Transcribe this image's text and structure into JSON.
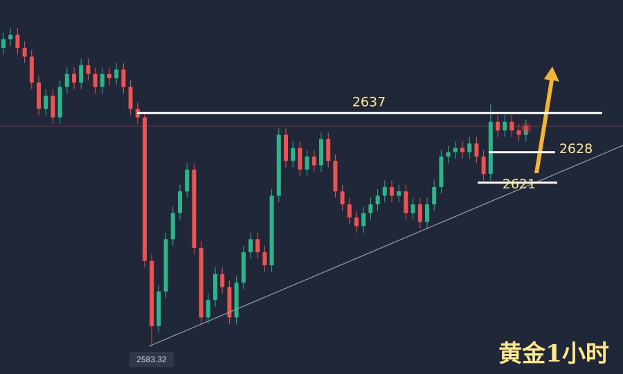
{
  "chart_data": {
    "type": "candlestick",
    "title": "黄金1小时",
    "up_color": "#2bb58a",
    "down_color": "#ef5350",
    "ylim": [
      2577,
      2663
    ],
    "levels": [
      2637,
      2628,
      2621
    ],
    "open": [
      2652,
      2654,
      2655,
      2652,
      2650,
      2644,
      2638,
      2641,
      2636,
      2643,
      2646,
      2644,
      2648,
      2646,
      2643,
      2646,
      2645,
      2647,
      2643,
      2638,
      2636,
      2603,
      2588,
      2596,
      2608,
      2614,
      2619,
      2624,
      2606,
      2590,
      2594,
      2600,
      2597,
      2590,
      2598,
      2605,
      2608,
      2605,
      2602,
      2618,
      2632,
      2626,
      2629,
      2624,
      2627,
      2625,
      2631,
      2626,
      2619,
      2616,
      2613,
      2611,
      2614,
      2616,
      2618,
      2620,
      2618,
      2619,
      2614,
      2616,
      2612,
      2616,
      2620,
      2627,
      2628,
      2629,
      2628,
      2630,
      2627,
      2623,
      2635,
      2633,
      2635,
      2633,
      2632
    ],
    "high": [
      2655.5,
      2656.5,
      2656.5,
      2653.5,
      2651.5,
      2645.5,
      2642.5,
      2642.5,
      2644.5,
      2647.5,
      2647.5,
      2649.5,
      2649.5,
      2647.5,
      2647.5,
      2647.5,
      2648.5,
      2648.5,
      2644.5,
      2639.5,
      2637,
      2604.5,
      2597.5,
      2609.5,
      2615.5,
      2620.5,
      2625.5,
      2625.5,
      2607.5,
      2595.5,
      2601.5,
      2601.5,
      2598.5,
      2599.5,
      2606.5,
      2609.5,
      2609.5,
      2606.5,
      2619.5,
      2633.5,
      2633.5,
      2630.5,
      2630.5,
      2628.5,
      2628.5,
      2632.5,
      2632.5,
      2627.5,
      2620.5,
      2617.5,
      2614.5,
      2615.5,
      2617.5,
      2619.5,
      2621.5,
      2621.5,
      2620.5,
      2620.5,
      2617.5,
      2617.5,
      2617.5,
      2621.5,
      2628.5,
      2629.5,
      2630.5,
      2630.5,
      2631.5,
      2631.5,
      2628.5,
      2639,
      2636.5,
      2636.5,
      2636.5,
      2634.5,
      2635.5
    ],
    "low": [
      2650.5,
      2652.5,
      2650.5,
      2648.5,
      2642.5,
      2636.5,
      2636.5,
      2634.5,
      2634.5,
      2641.5,
      2642.5,
      2642.5,
      2644.5,
      2641.5,
      2641.5,
      2643.5,
      2643.5,
      2641.5,
      2636.5,
      2634.5,
      2601.5,
      2583.32,
      2586.5,
      2594.5,
      2606.5,
      2612.5,
      2617.5,
      2604.5,
      2588.5,
      2588.5,
      2592.5,
      2595.5,
      2588.5,
      2588.5,
      2596.5,
      2603.5,
      2603.5,
      2600.5,
      2600.5,
      2616.5,
      2624.5,
      2624.5,
      2622.5,
      2622.5,
      2623.5,
      2623.5,
      2624.5,
      2617.5,
      2614.5,
      2611.5,
      2609.5,
      2609.5,
      2612.5,
      2614.5,
      2616.5,
      2616.5,
      2616.5,
      2612.5,
      2612.5,
      2610.5,
      2610.5,
      2614.5,
      2618.5,
      2625.5,
      2626.5,
      2626.5,
      2626.5,
      2625.5,
      2621.5,
      2621.5,
      2631.5,
      2631.5,
      2631.5,
      2630.5,
      2630.5
    ],
    "close": [
      2654,
      2655,
      2652,
      2650,
      2644,
      2638,
      2641,
      2636,
      2643,
      2646,
      2644,
      2648,
      2646,
      2643,
      2646,
      2645,
      2647,
      2643,
      2638,
      2636,
      2603,
      2588,
      2596,
      2608,
      2614,
      2619,
      2624,
      2606,
      2590,
      2594,
      2600,
      2597,
      2590,
      2598,
      2605,
      2608,
      2605,
      2602,
      2618,
      2632,
      2626,
      2629,
      2624,
      2627,
      2625,
      2631,
      2626,
      2619,
      2616,
      2613,
      2611,
      2614,
      2616,
      2618,
      2620,
      2618,
      2619,
      2614,
      2616,
      2612,
      2616,
      2620,
      2627,
      2628,
      2629,
      2628,
      2630,
      2627,
      2623,
      2635,
      2633,
      2635,
      2633,
      2632,
      2634
    ]
  }
}
